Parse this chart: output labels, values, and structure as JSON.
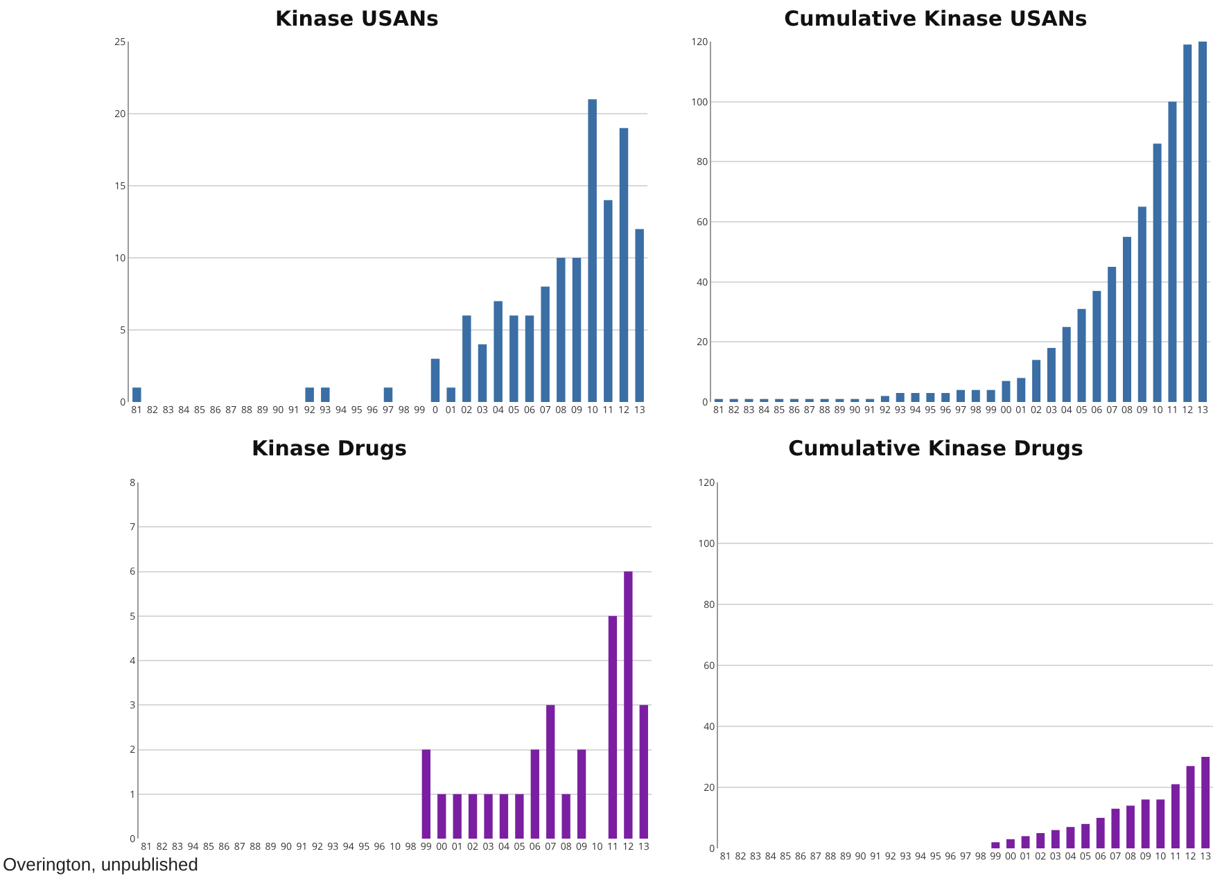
{
  "chart_data": [
    {
      "type": "bar",
      "title": "Kinase USANs",
      "categories": [
        "81",
        "82",
        "83",
        "84",
        "85",
        "86",
        "87",
        "88",
        "89",
        "90",
        "91",
        "92",
        "93",
        "94",
        "95",
        "96",
        "97",
        "98",
        "99",
        "0",
        "01",
        "02",
        "03",
        "04",
        "05",
        "06",
        "07",
        "08",
        "09",
        "10",
        "11",
        "12",
        "13"
      ],
      "values": [
        1,
        0,
        0,
        0,
        0,
        0,
        0,
        0,
        0,
        0,
        0,
        1,
        1,
        0,
        0,
        0,
        1,
        0,
        0,
        3,
        1,
        6,
        4,
        7,
        6,
        6,
        8,
        10,
        10,
        21,
        14,
        19,
        12
      ],
      "color": "#3a6ea5",
      "ylim": [
        0,
        25
      ],
      "yticks": [
        0,
        5,
        10,
        15,
        20,
        25
      ],
      "grid": "y"
    },
    {
      "type": "bar",
      "title": "Cumulative Kinase USANs",
      "categories": [
        "81",
        "82",
        "83",
        "84",
        "85",
        "86",
        "87",
        "88",
        "89",
        "90",
        "91",
        "92",
        "93",
        "94",
        "95",
        "96",
        "97",
        "98",
        "99",
        "00",
        "01",
        "02",
        "03",
        "04",
        "05",
        "06",
        "07",
        "08",
        "09",
        "10",
        "11",
        "12",
        "13"
      ],
      "values": [
        1,
        1,
        1,
        1,
        1,
        1,
        1,
        1,
        1,
        1,
        1,
        2,
        3,
        3,
        3,
        3,
        4,
        4,
        4,
        7,
        8,
        14,
        18,
        25,
        31,
        37,
        45,
        55,
        65,
        86,
        100,
        119,
        120
      ],
      "color": "#3a6ea5",
      "ylim": [
        0,
        120
      ],
      "yticks": [
        0,
        20,
        40,
        60,
        80,
        100,
        120
      ],
      "grid": "y"
    },
    {
      "type": "bar",
      "title": "Kinase Drugs",
      "categories": [
        "81",
        "82",
        "83",
        "94",
        "85",
        "86",
        "87",
        "88",
        "89",
        "90",
        "91",
        "92",
        "93",
        "94",
        "95",
        "96",
        "10",
        "98",
        "99",
        "00",
        "01",
        "02",
        "03",
        "04",
        "05",
        "06",
        "07",
        "08",
        "09",
        "10",
        "11",
        "12",
        "13"
      ],
      "values": [
        0,
        0,
        0,
        0,
        0,
        0,
        0,
        0,
        0,
        0,
        0,
        0,
        0,
        0,
        0,
        0,
        0,
        0,
        2,
        1,
        1,
        1,
        1,
        1,
        1,
        2,
        3,
        1,
        2,
        0,
        5,
        6,
        3
      ],
      "color": "#7b1fa2",
      "ylim": [
        0,
        8
      ],
      "yticks": [
        0,
        1,
        2,
        3,
        4,
        5,
        6,
        7,
        8
      ],
      "grid": "y",
      "annotations": [
        "Overington, unpublished"
      ]
    },
    {
      "type": "bar",
      "title": "Cumulative Kinase Drugs",
      "categories": [
        "81",
        "82",
        "83",
        "84",
        "85",
        "86",
        "87",
        "88",
        "89",
        "90",
        "91",
        "92",
        "93",
        "94",
        "95",
        "96",
        "97",
        "98",
        "99",
        "00",
        "01",
        "02",
        "03",
        "04",
        "05",
        "06",
        "07",
        "08",
        "09",
        "10",
        "11",
        "12",
        "13"
      ],
      "values": [
        0,
        0,
        0,
        0,
        0,
        0,
        0,
        0,
        0,
        0,
        0,
        0,
        0,
        0,
        0,
        0,
        0,
        0,
        2,
        3,
        4,
        5,
        6,
        7,
        8,
        10,
        13,
        14,
        16,
        16,
        21,
        27,
        30
      ],
      "color": "#7b1fa2",
      "ylim": [
        0,
        120
      ],
      "yticks": [
        0,
        20,
        40,
        60,
        80,
        100,
        120
      ],
      "grid": "y"
    }
  ]
}
